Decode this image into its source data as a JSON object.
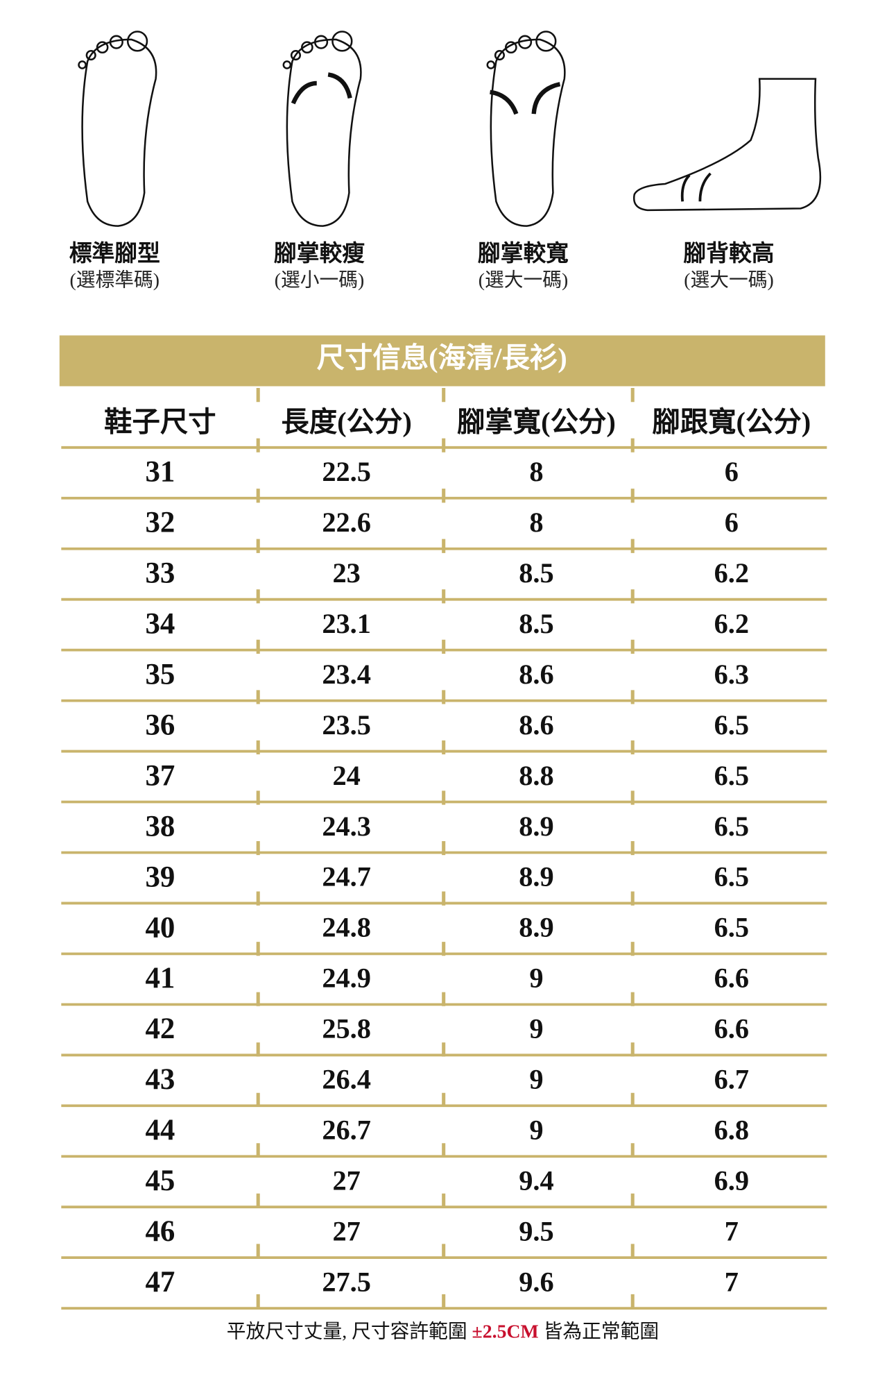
{
  "foot_types": [
    {
      "title": "標準腳型",
      "subtitle": "(選標準碼)"
    },
    {
      "title": "腳掌較瘦",
      "subtitle": "(選小一碼)"
    },
    {
      "title": "腳掌較寬",
      "subtitle": "(選大一碼)"
    },
    {
      "title": "腳背較高",
      "subtitle": "(選大一碼)"
    }
  ],
  "table": {
    "title": "尺寸信息(海清/長衫)",
    "columns": [
      "鞋子尺寸",
      "長度(公分)",
      "腳掌寬(公分)",
      "腳跟寬(公分)"
    ],
    "rows": [
      [
        31,
        22.5,
        8,
        6
      ],
      [
        32,
        22.6,
        8,
        6
      ],
      [
        33,
        23,
        8.5,
        6.2
      ],
      [
        34,
        23.1,
        8.5,
        6.2
      ],
      [
        35,
        23.4,
        8.6,
        6.3
      ],
      [
        36,
        23.5,
        8.6,
        6.5
      ],
      [
        37,
        24,
        8.8,
        6.5
      ],
      [
        38,
        24.3,
        8.9,
        6.5
      ],
      [
        39,
        24.7,
        8.9,
        6.5
      ],
      [
        40,
        24.8,
        8.9,
        6.5
      ],
      [
        41,
        24.9,
        9,
        6.6
      ],
      [
        42,
        25.8,
        9,
        6.6
      ],
      [
        43,
        26.4,
        9,
        6.7
      ],
      [
        44,
        26.7,
        9,
        6.8
      ],
      [
        45,
        27,
        9.4,
        6.9
      ],
      [
        46,
        27,
        9.5,
        7
      ],
      [
        47,
        27.5,
        9.6,
        7
      ]
    ]
  },
  "footer": {
    "before": "平放尺寸丈量, 尺寸容許範圍 ",
    "highlight": "±2.5CM",
    "after": " 皆為正常範圍"
  }
}
